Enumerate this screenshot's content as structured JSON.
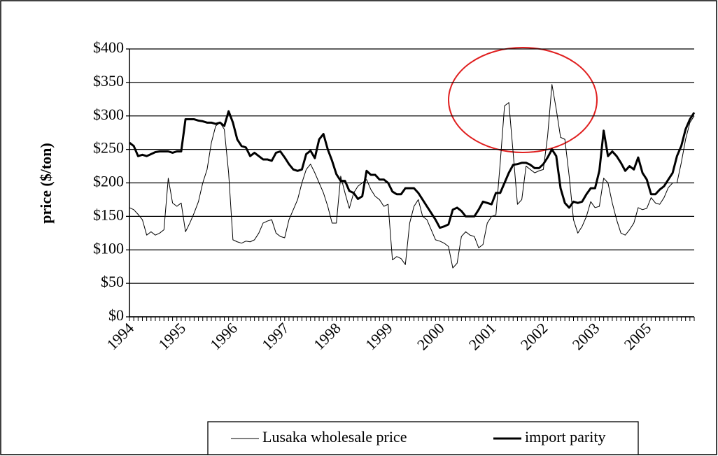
{
  "chart_data": {
    "type": "line",
    "ylabel": "price ($/ton)",
    "categories": [
      "1994",
      null,
      null,
      null,
      null,
      null,
      null,
      null,
      null,
      null,
      null,
      null,
      "1995",
      null,
      null,
      null,
      null,
      null,
      null,
      null,
      null,
      null,
      null,
      null,
      "1996",
      null,
      null,
      null,
      null,
      null,
      null,
      null,
      null,
      null,
      null,
      null,
      "1997",
      null,
      null,
      null,
      null,
      null,
      null,
      null,
      null,
      null,
      null,
      null,
      "1998",
      null,
      null,
      null,
      null,
      null,
      null,
      null,
      null,
      null,
      null,
      null,
      "1999",
      null,
      null,
      null,
      null,
      null,
      null,
      null,
      null,
      null,
      null,
      null,
      "2000",
      null,
      null,
      null,
      null,
      null,
      null,
      null,
      null,
      null,
      null,
      null,
      "2001",
      null,
      null,
      null,
      null,
      null,
      null,
      null,
      null,
      null,
      null,
      null,
      "2002",
      null,
      null,
      null,
      null,
      null,
      null,
      null,
      null,
      null,
      null,
      null,
      "2003",
      null,
      null,
      null,
      null,
      null,
      null,
      null,
      null,
      null,
      null,
      null,
      "2005",
      null,
      null,
      null,
      null,
      null,
      null,
      null,
      null,
      null,
      null,
      null
    ],
    "series": [
      {
        "name": "Lusaka wholesale price",
        "color": "#000000",
        "width": 1,
        "values": [
          163,
          160,
          153,
          145,
          122,
          127,
          122,
          125,
          130,
          207,
          170,
          165,
          170,
          127,
          140,
          155,
          172,
          200,
          220,
          260,
          285,
          290,
          280,
          215,
          115,
          112,
          110,
          113,
          112,
          115,
          125,
          140,
          143,
          145,
          125,
          120,
          118,
          145,
          160,
          175,
          200,
          220,
          228,
          215,
          200,
          185,
          165,
          140,
          140,
          210,
          185,
          162,
          185,
          195,
          200,
          205,
          190,
          180,
          175,
          165,
          168,
          85,
          90,
          87,
          78,
          140,
          165,
          175,
          150,
          145,
          130,
          115,
          113,
          110,
          105,
          73,
          80,
          120,
          127,
          122,
          120,
          103,
          108,
          140,
          150,
          152,
          230,
          315,
          320,
          245,
          168,
          175,
          225,
          220,
          215,
          218,
          220,
          270,
          347,
          310,
          268,
          265,
          210,
          145,
          125,
          135,
          150,
          172,
          163,
          165,
          207,
          200,
          170,
          145,
          125,
          122,
          130,
          140,
          163,
          160,
          162,
          178,
          170,
          168,
          178,
          193,
          200,
          200,
          230,
          265,
          290,
          300
        ]
      },
      {
        "name": "import parity",
        "color": "#000000",
        "width": 3,
        "values": [
          260,
          255,
          240,
          242,
          240,
          243,
          246,
          247,
          247,
          247,
          245,
          247,
          247,
          295,
          295,
          295,
          293,
          292,
          290,
          290,
          288,
          290,
          285,
          307,
          290,
          265,
          255,
          253,
          240,
          245,
          240,
          235,
          235,
          233,
          245,
          247,
          238,
          228,
          220,
          218,
          220,
          243,
          248,
          237,
          265,
          273,
          250,
          233,
          213,
          203,
          203,
          188,
          185,
          176,
          180,
          218,
          212,
          212,
          205,
          205,
          200,
          187,
          183,
          183,
          192,
          192,
          192,
          185,
          175,
          165,
          155,
          145,
          133,
          135,
          138,
          160,
          163,
          158,
          150,
          150,
          150,
          160,
          172,
          170,
          168,
          185,
          185,
          200,
          215,
          227,
          228,
          230,
          230,
          227,
          222,
          222,
          228,
          238,
          250,
          240,
          192,
          170,
          163,
          172,
          170,
          172,
          183,
          192,
          192,
          218,
          278,
          240,
          247,
          240,
          230,
          218,
          225,
          220,
          238,
          215,
          205,
          183,
          183,
          190,
          195,
          205,
          215,
          240,
          255,
          280,
          295,
          305
        ]
      }
    ],
    "ylim": [
      0,
      400
    ],
    "yticks": [
      {
        "value": 0,
        "label": "$0"
      },
      {
        "value": 50,
        "label": "$50"
      },
      {
        "value": 100,
        "label": "$100"
      },
      {
        "value": 150,
        "label": "$150"
      },
      {
        "value": 200,
        "label": "$200"
      },
      {
        "value": 250,
        "label": "$250"
      },
      {
        "value": 300,
        "label": "$300"
      },
      {
        "value": 350,
        "label": "$350"
      },
      {
        "value": 400,
        "label": "$400"
      }
    ],
    "grid": true,
    "legend": "bottom"
  }
}
